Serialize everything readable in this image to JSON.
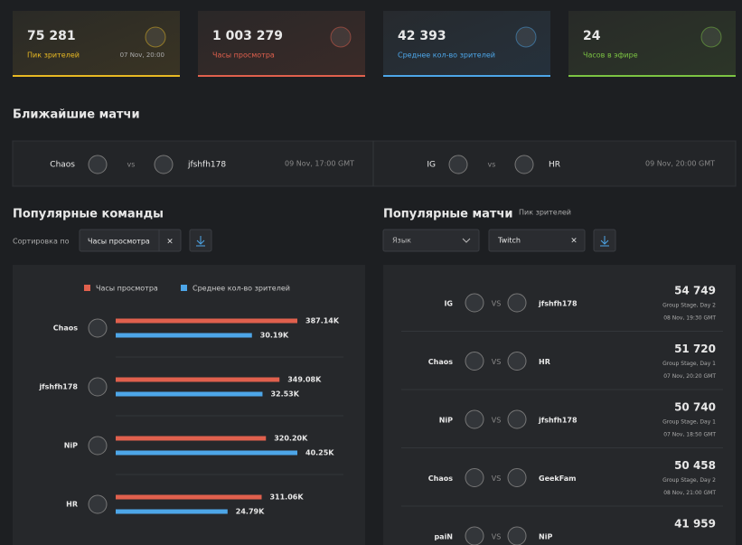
{
  "stats": [
    {
      "value": "75 281",
      "label": "Пик зрителей",
      "date": "07 Nov, 20:00"
    },
    {
      "value": "1 003 279",
      "label": "Часы просмотра"
    },
    {
      "value": "42 393",
      "label": "Среднее кол-во зрителей"
    },
    {
      "value": "24",
      "label": "Часов в эфире"
    }
  ],
  "upcoming": {
    "title": "Ближайшие матчи",
    "matches": [
      {
        "team1": "Chaos",
        "vs": "vs",
        "team2": "jfshfh178",
        "time": "09 Nov, 17:00 GMT"
      },
      {
        "team1": "IG",
        "vs": "vs",
        "team2": "HR",
        "time": "09 Nov, 20:00 GMT"
      }
    ]
  },
  "popular_teams": {
    "title": "Популярные команды",
    "sort_label": "Сортировка по",
    "sort_value": "Часы просмотра",
    "chart": {
      "type": "bar",
      "categories": [
        "Chaos",
        "jfshfh178",
        "NiP",
        "HR"
      ],
      "series": [
        {
          "name": "Часы просмотра",
          "color": "#e0604d",
          "values": [
            387140,
            349080,
            320200,
            311060
          ],
          "value_labels": [
            "387.14K",
            "349.08K",
            "320.20K",
            "311.06K"
          ]
        },
        {
          "name": "Среднее кол-во зрителей",
          "color": "#4da6e8",
          "values": [
            30190,
            32530,
            40250,
            24790
          ],
          "value_labels": [
            "30.19K",
            "32.53K",
            "40.25K",
            "24.79K"
          ]
        }
      ]
    }
  },
  "popular_matches": {
    "title": "Популярные матчи",
    "subtitle": "Пик зрителей",
    "language": "Язык",
    "platform": "Twitch",
    "matches": [
      {
        "team1": "IG",
        "vs": "VS",
        "team2": "jfshfh178",
        "viewers": "54 749",
        "stage": "Group Stage, Day 2",
        "date": "08 Nov, 19:30 GMT"
      },
      {
        "team1": "Chaos",
        "vs": "VS",
        "team2": "HR",
        "viewers": "51 720",
        "stage": "Group Stage, Day 1",
        "date": "07 Nov, 20:20 GMT"
      },
      {
        "team1": "NiP",
        "vs": "VS",
        "team2": "jfshfh178",
        "viewers": "50 740",
        "stage": "Group Stage, Day 1",
        "date": "07 Nov, 18:50 GMT"
      },
      {
        "team1": "Chaos",
        "vs": "VS",
        "team2": "GeekFam",
        "viewers": "50 458",
        "stage": "Group Stage, Day 2",
        "date": "08 Nov, 21:00 GMT"
      },
      {
        "team1": "paiN",
        "vs": "VS",
        "team2": "NiP",
        "viewers": "41 959"
      }
    ]
  }
}
